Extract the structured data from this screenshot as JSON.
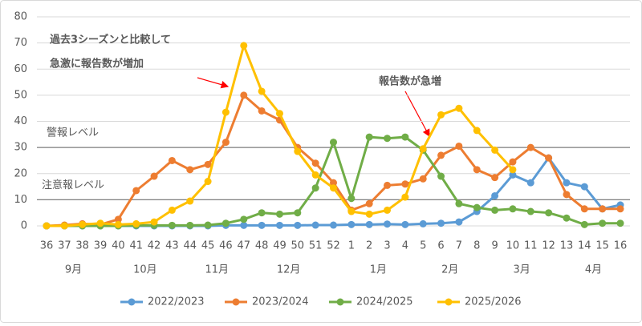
{
  "chart_data": {
    "type": "line",
    "categories": [
      "36",
      "37",
      "38",
      "39",
      "40",
      "41",
      "42",
      "43",
      "44",
      "45",
      "46",
      "47",
      "48",
      "49",
      "50",
      "51",
      "52",
      "1",
      "2",
      "3",
      "4",
      "5",
      "6",
      "7",
      "8",
      "9",
      "10",
      "11",
      "12",
      "13",
      "14",
      "15",
      "16"
    ],
    "month_labels": [
      null,
      "9月",
      null,
      null,
      null,
      "10月",
      null,
      null,
      null,
      "11月",
      null,
      null,
      null,
      "12月",
      null,
      null,
      null,
      null,
      "1月",
      null,
      null,
      null,
      "2月",
      null,
      null,
      null,
      "3月",
      null,
      null,
      null,
      "4月",
      null,
      null
    ],
    "series": [
      {
        "name": "2022/2023",
        "color": "#5b9bd5",
        "values": [
          0,
          0,
          0,
          0,
          0,
          0,
          0,
          0,
          0,
          0,
          0.2,
          0.2,
          0.2,
          0.2,
          0.2,
          0.3,
          0.3,
          0.5,
          0.5,
          0.7,
          0.5,
          0.8,
          1,
          1.5,
          5.5,
          11.5,
          19.5,
          16.5,
          26,
          16.5,
          15,
          6.5,
          8
        ]
      },
      {
        "name": "2023/2024",
        "color": "#ed7d31",
        "values": [
          0,
          0.3,
          0.8,
          0.5,
          2.5,
          13.5,
          19,
          25,
          21.5,
          23.5,
          32,
          50,
          44,
          40.5,
          30,
          24,
          16.5,
          6,
          8.5,
          15.5,
          16,
          18,
          27,
          30.5,
          21.5,
          18.5,
          24.5,
          30,
          26,
          12,
          6.5,
          6.5,
          6.5
        ]
      },
      {
        "name": "2024/2025",
        "color": "#70ad47",
        "values": [
          0,
          0,
          0,
          0,
          0,
          0.2,
          0.2,
          0.2,
          0.2,
          0.3,
          1,
          2.5,
          5,
          4.5,
          5,
          14.5,
          32,
          10.5,
          34,
          33.5,
          34,
          29,
          19,
          8.5,
          7,
          6,
          6.5,
          5.5,
          5,
          3,
          0.5,
          1,
          1
        ]
      },
      {
        "name": "2025/2026",
        "color": "#ffc000",
        "values": [
          0,
          0,
          0.5,
          1,
          0.5,
          0.8,
          1.5,
          6,
          9.5,
          17,
          43.5,
          69,
          51.5,
          43,
          28.5,
          19.5,
          14.5,
          5.5,
          4.5,
          6,
          11,
          29.5,
          42.5,
          45,
          36.5,
          29,
          21.5,
          null,
          null,
          null,
          null,
          null,
          null
        ]
      }
    ],
    "ylim": [
      0,
      80
    ],
    "yticks": [
      0,
      10,
      20,
      30,
      40,
      50,
      60,
      70,
      80
    ],
    "grid": true,
    "levels": [
      {
        "value": 30,
        "label": "警報レベル"
      },
      {
        "value": 10,
        "label": "注意報レベル"
      }
    ],
    "annotations": [
      [
        "過去3シーズンと比較して",
        "急激に報告数が増加"
      ],
      [
        "報告数が急増"
      ]
    ],
    "legend": "bottom"
  }
}
